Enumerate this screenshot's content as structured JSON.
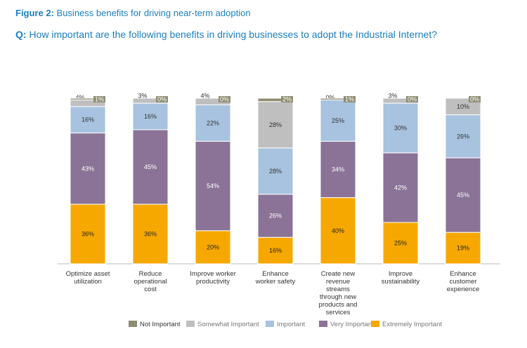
{
  "header": {
    "figure_label": "Figure 2:",
    "figure_title": "Business benefits for driving near-term adoption",
    "question_label": "Q:",
    "question_text": "How important are the following benefits in driving businesses to adopt the Industrial Internet?"
  },
  "chart_data": {
    "type": "bar",
    "stacked": true,
    "title": "Business benefits for driving near-term adoption",
    "ylim": [
      0,
      100
    ],
    "grid": false,
    "legend_position": "bottom",
    "categories": [
      [
        "Optimize asset",
        "utilization"
      ],
      [
        "Reduce",
        "operational",
        "cost"
      ],
      [
        "Improve worker",
        "productivity"
      ],
      [
        "Enhance",
        "worker safety"
      ],
      [
        "Create new",
        "revenue",
        "streams",
        "through new",
        "products and",
        "services"
      ],
      [
        "Improve",
        "sustainability"
      ],
      [
        "Enhance",
        "customer",
        "experience"
      ]
    ],
    "series": [
      {
        "name": "Extremely Important",
        "color": "#f7a800",
        "label_color": "#222222",
        "values": [
          36,
          36,
          20,
          16,
          40,
          25,
          19
        ]
      },
      {
        "name": "Very Important",
        "color": "#8a7396",
        "label_color": "#ffffff",
        "values": [
          43,
          45,
          54,
          26,
          34,
          42,
          45
        ]
      },
      {
        "name": "Important",
        "color": "#a7c3df",
        "label_color": "#333333",
        "values": [
          16,
          16,
          22,
          28,
          25,
          30,
          26
        ]
      },
      {
        "name": "Somewhat Important",
        "color": "#bfbfbf",
        "label_color": "#333333",
        "values": [
          4,
          3,
          4,
          28,
          0,
          3,
          10
        ]
      },
      {
        "name": "Not Important",
        "color": "#8e8d72",
        "label_color": "#ffffff",
        "values": [
          1,
          0,
          0,
          2,
          1,
          0,
          0
        ]
      }
    ],
    "legend_order": [
      "Not Important",
      "Somewhat Important",
      "Important",
      "Very Important",
      "Extremely Important"
    ],
    "value_suffix": "%"
  }
}
